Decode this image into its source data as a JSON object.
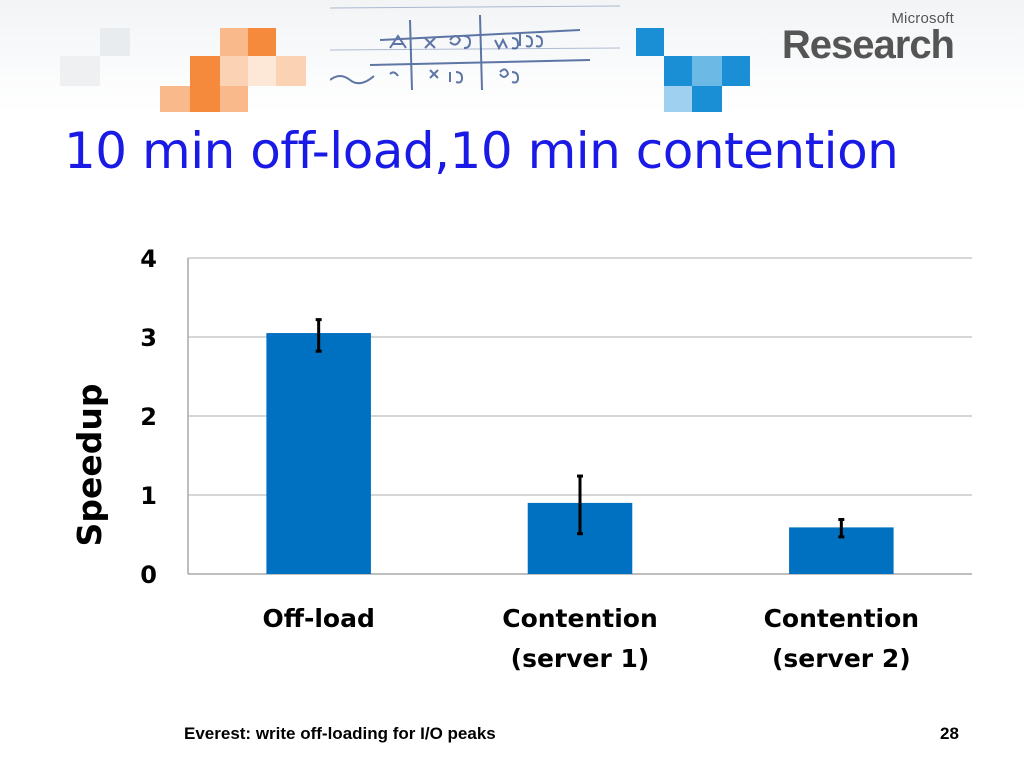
{
  "slide": {
    "title": "10 min off-load,10 min contention",
    "footer": "Everest: write off-loading for I/O peaks",
    "page_number": "28",
    "logo": {
      "line1": "Microsoft",
      "line2": "Research"
    }
  },
  "colors": {
    "bar": "#0070c0",
    "title": "#1a1ae6",
    "grid": "#c8c8c8",
    "banner_orange": "#f58a3c",
    "banner_blue": "#1b8fd6"
  },
  "chart_data": {
    "type": "bar",
    "title": "",
    "xlabel": "",
    "ylabel": "Speedup",
    "ylim": [
      0,
      4
    ],
    "yticks": [
      "0",
      "1",
      "2",
      "3",
      "4"
    ],
    "grid": true,
    "categories": [
      [
        "Off-load"
      ],
      [
        "Contention",
        "(server 1)"
      ],
      [
        "Contention",
        "(server 2)"
      ]
    ],
    "values": [
      3.05,
      0.9,
      0.59
    ],
    "error_low": [
      2.82,
      0.51,
      0.47
    ],
    "error_high": [
      3.22,
      1.24,
      0.69
    ]
  }
}
